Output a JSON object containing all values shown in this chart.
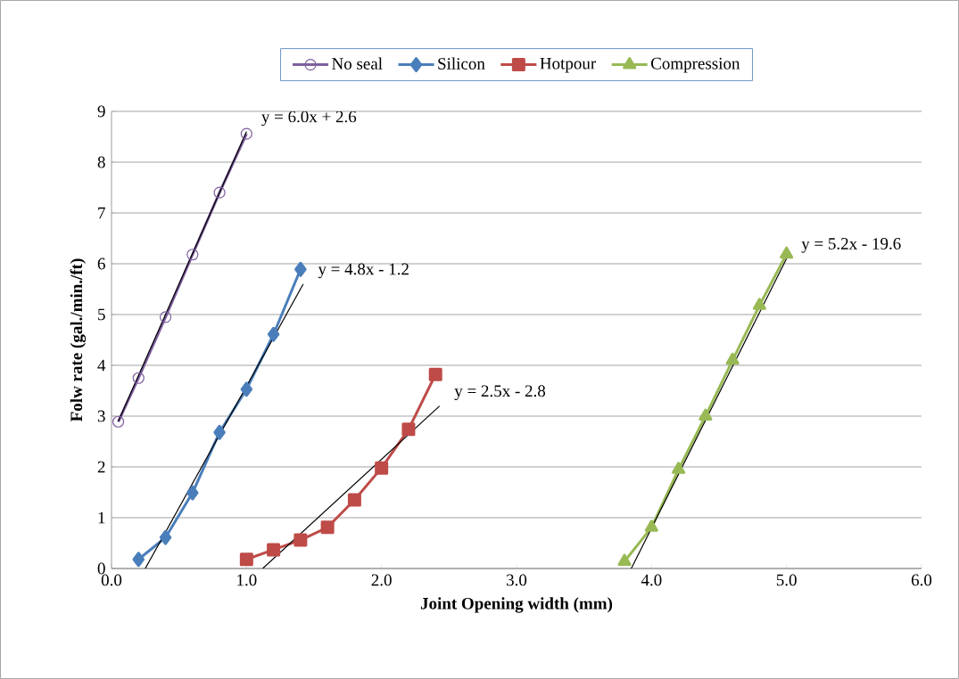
{
  "chart_data": {
    "type": "line",
    "xlabel": "Joint Opening width (mm)",
    "ylabel": "Folw rate (gal./min./ft)",
    "xlim": [
      0,
      6
    ],
    "ylim": [
      0,
      9
    ],
    "xticks": [
      {
        "value": 0,
        "label": "0.0"
      },
      {
        "value": 1,
        "label": "1.0"
      },
      {
        "value": 2,
        "label": "2.0"
      },
      {
        "value": 3,
        "label": "3.0"
      },
      {
        "value": 4,
        "label": "4.0"
      },
      {
        "value": 5,
        "label": "5.0"
      },
      {
        "value": 6,
        "label": "6.0"
      }
    ],
    "yticks": [
      0,
      1,
      2,
      3,
      4,
      5,
      6,
      7,
      8,
      9
    ],
    "grid": "y",
    "legend": "top",
    "series": [
      {
        "name": "No seal",
        "color": "#7f5fa0",
        "marker": "circle",
        "x": [
          0.05,
          0.2,
          0.4,
          0.6,
          0.8,
          1.0
        ],
        "values": [
          2.89,
          3.75,
          4.95,
          6.18,
          7.4,
          8.56
        ]
      },
      {
        "name": "Silicon",
        "color": "#4a7ebb",
        "marker": "diamond",
        "x": [
          0.2,
          0.4,
          0.6,
          0.8,
          1.0,
          1.2,
          1.4
        ],
        "values": [
          0.18,
          0.61,
          1.49,
          2.68,
          3.53,
          4.61,
          5.89
        ]
      },
      {
        "name": "Hotpour",
        "color": "#be4b48",
        "marker": "square",
        "x": [
          1.0,
          1.2,
          1.4,
          1.6,
          1.8,
          2.0,
          2.2,
          2.4
        ],
        "values": [
          0.18,
          0.37,
          0.56,
          0.81,
          1.35,
          1.98,
          2.74,
          3.82
        ]
      },
      {
        "name": "Compression",
        "color": "#98b954",
        "marker": "triangle",
        "x": [
          3.8,
          4.0,
          4.2,
          4.4,
          4.6,
          4.8,
          5.0
        ],
        "values": [
          0.14,
          0.81,
          1.95,
          3.0,
          4.1,
          5.18,
          6.19
        ]
      },
      {
        "color": "#000000",
        "marker": "none",
        "x": [
          0.05,
          1.0
        ],
        "values": [
          2.9,
          8.6
        ]
      },
      {
        "color": "#000000",
        "marker": "none",
        "x": [
          0.25,
          1.42
        ],
        "values": [
          0.0,
          5.6
        ]
      },
      {
        "color": "#000000",
        "marker": "none",
        "x": [
          1.12,
          2.43
        ],
        "values": [
          0.0,
          3.2
        ]
      },
      {
        "color": "#000000",
        "marker": "none",
        "x": [
          3.85,
          5.0
        ],
        "values": [
          0.0,
          6.1
        ]
      }
    ],
    "annotations": [
      "y = 6.0x + 2.6",
      "y = 4.8x - 1.2",
      "y = 2.5x - 2.8",
      "y = 5.2x - 19.6"
    ]
  }
}
